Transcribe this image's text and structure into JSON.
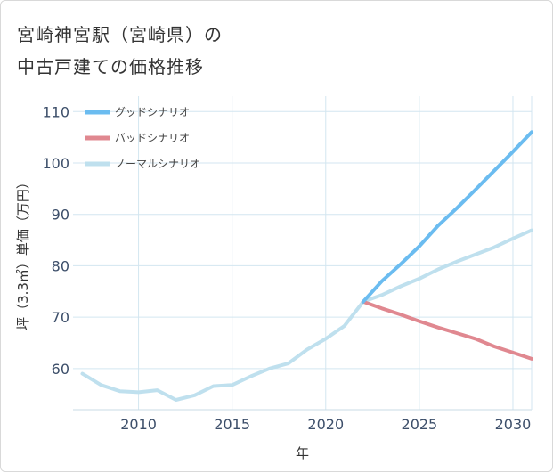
{
  "title": {
    "line1": "宮崎神宮駅（宮崎県）の",
    "line2": "中古戸建ての価格推移"
  },
  "chart_data": {
    "type": "line",
    "xlabel": "年",
    "ylabel": "坪（3.3㎡）単価（万円）",
    "xlim": [
      2006.5,
      2031
    ],
    "ylim": [
      52,
      113
    ],
    "xticks": [
      2010,
      2015,
      2020,
      2025,
      2030
    ],
    "yticks": [
      60,
      70,
      80,
      90,
      100,
      110
    ],
    "grid": true,
    "legend_position": "top-left",
    "series": [
      {
        "name": "グッドシナリオ",
        "color": "#6bbcf0",
        "x": [
          2022,
          2023,
          2024,
          2025,
          2026,
          2027,
          2028,
          2029,
          2030,
          2031
        ],
        "values": [
          73.0,
          77.0,
          80.3,
          83.8,
          87.8,
          91.2,
          94.8,
          98.5,
          102.2,
          106.0
        ]
      },
      {
        "name": "バッドシナリオ",
        "color": "#e08890",
        "x": [
          2022,
          2023,
          2024,
          2025,
          2026,
          2027,
          2028,
          2029,
          2030,
          2031
        ],
        "values": [
          73.0,
          71.7,
          70.5,
          69.2,
          68.0,
          66.9,
          65.8,
          64.3,
          63.1,
          61.9
        ]
      },
      {
        "name": "ノーマルシナリオ",
        "color": "#bfe0ee",
        "x": [
          2007,
          2008,
          2009,
          2010,
          2011,
          2012,
          2013,
          2014,
          2015,
          2016,
          2017,
          2018,
          2019,
          2020,
          2021,
          2022,
          2023,
          2024,
          2025,
          2026,
          2027,
          2028,
          2029,
          2030,
          2031
        ],
        "values": [
          59.0,
          56.8,
          55.6,
          55.4,
          55.8,
          53.9,
          54.8,
          56.6,
          56.8,
          58.5,
          60.0,
          61.0,
          63.7,
          65.8,
          68.3,
          73.0,
          74.3,
          76.0,
          77.5,
          79.3,
          80.8,
          82.2,
          83.6,
          85.3,
          86.9
        ]
      }
    ]
  }
}
